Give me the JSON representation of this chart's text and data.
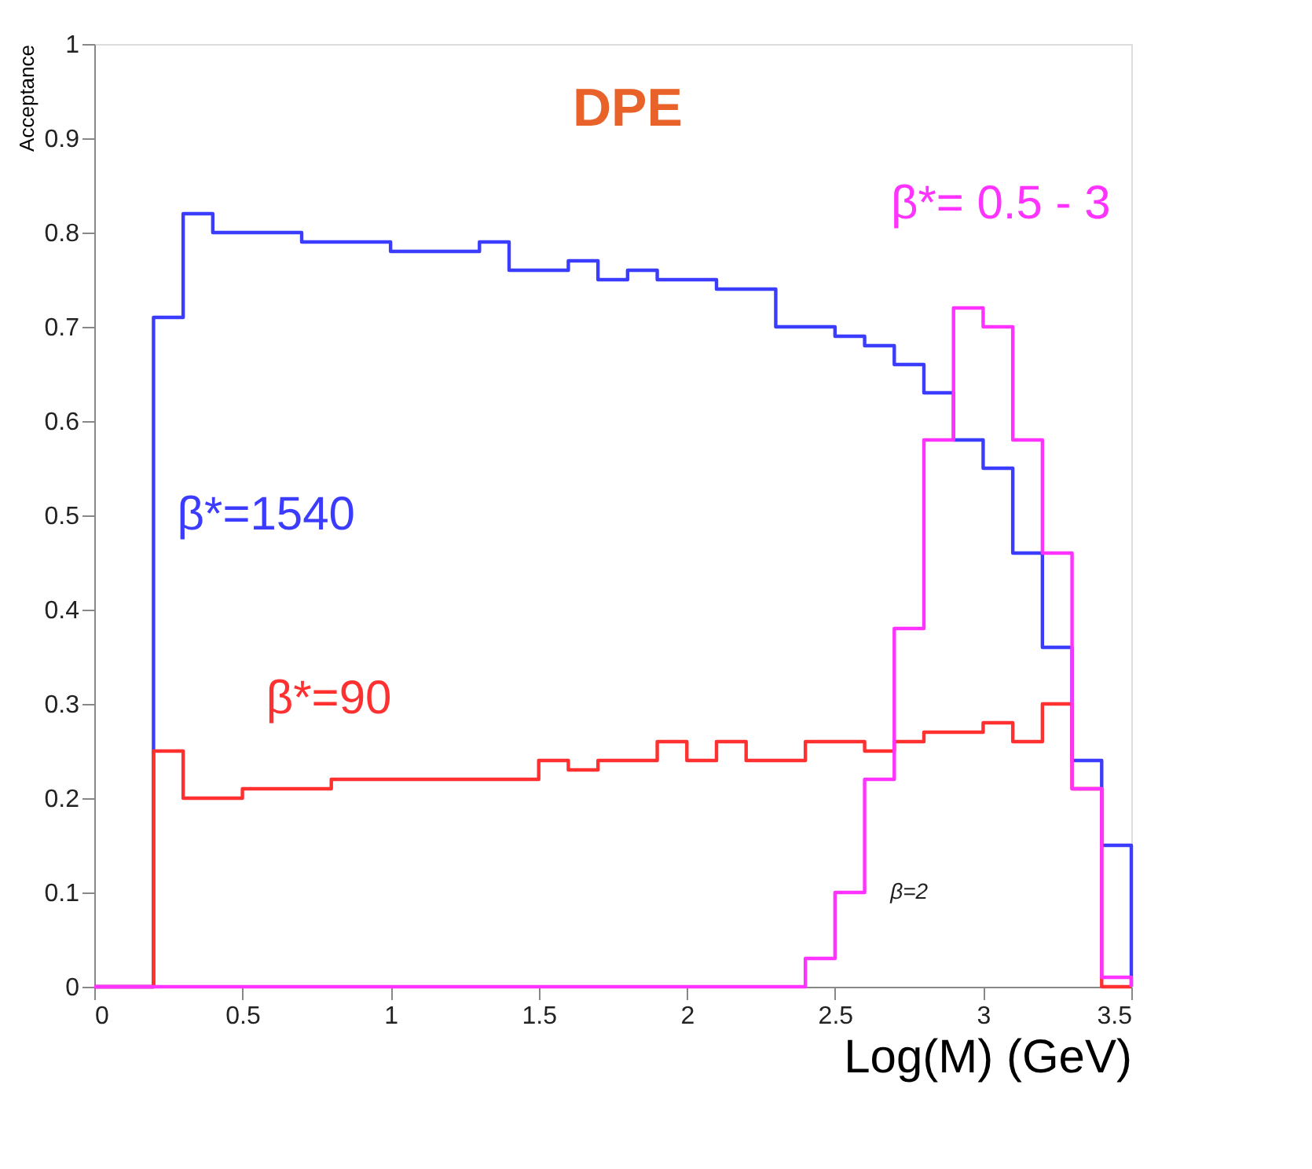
{
  "chart_data": {
    "type": "histogram",
    "title": "DPE",
    "xlabel": "Log(M) (GeV)",
    "ylabel": "Acceptance",
    "bins": [
      0,
      0.1,
      0.2,
      0.3,
      0.4,
      0.5,
      0.6,
      0.7,
      0.8,
      0.9,
      1,
      1.1,
      1.2,
      1.3,
      1.4,
      1.5,
      1.6,
      1.7,
      1.8,
      1.9,
      2,
      2.1,
      2.2,
      2.3,
      2.4,
      2.5,
      2.6,
      2.7,
      2.8,
      2.9,
      3,
      3.1,
      3.2,
      3.3,
      3.4,
      3.5
    ],
    "series": [
      {
        "name": "β*=1540",
        "color": "#3c3cff",
        "values": [
          0,
          0,
          0.71,
          0.82,
          0.8,
          0.8,
          0.8,
          0.79,
          0.79,
          0.79,
          0.78,
          0.78,
          0.78,
          0.79,
          0.76,
          0.76,
          0.77,
          0.75,
          0.76,
          0.75,
          0.75,
          0.74,
          0.74,
          0.7,
          0.7,
          0.69,
          0.68,
          0.66,
          0.63,
          0.58,
          0.55,
          0.46,
          0.36,
          0.24,
          0.15
        ]
      },
      {
        "name": "β*=90",
        "color": "#ff3030",
        "values": [
          0,
          0,
          0.25,
          0.2,
          0.2,
          0.21,
          0.21,
          0.21,
          0.22,
          0.22,
          0.22,
          0.22,
          0.22,
          0.22,
          0.22,
          0.24,
          0.23,
          0.24,
          0.24,
          0.26,
          0.24,
          0.26,
          0.24,
          0.24,
          0.26,
          0.26,
          0.25,
          0.26,
          0.27,
          0.27,
          0.28,
          0.26,
          0.3,
          0.21,
          0
        ]
      },
      {
        "name": "β*= 0.5 - 3",
        "color": "#ff33ff",
        "values": [
          0,
          0,
          0,
          0,
          0,
          0,
          0,
          0,
          0,
          0,
          0,
          0,
          0,
          0,
          0,
          0,
          0,
          0,
          0,
          0,
          0,
          0,
          0,
          0,
          0.03,
          0.1,
          0.22,
          0.38,
          0.58,
          0.72,
          0.7,
          0.58,
          0.46,
          0.21,
          0.01
        ]
      }
    ],
    "annotations": [
      "β=2"
    ],
    "xlim": [
      0,
      3.5
    ],
    "xticks": [
      0,
      0.5,
      1,
      1.5,
      2,
      2.5,
      3,
      3.5
    ],
    "ylim": [
      0,
      1
    ],
    "yticks": [
      0,
      0.1,
      0.2,
      0.3,
      0.4,
      0.5,
      0.6,
      0.7,
      0.8,
      0.9,
      1
    ],
    "grid": false,
    "legend": false
  }
}
